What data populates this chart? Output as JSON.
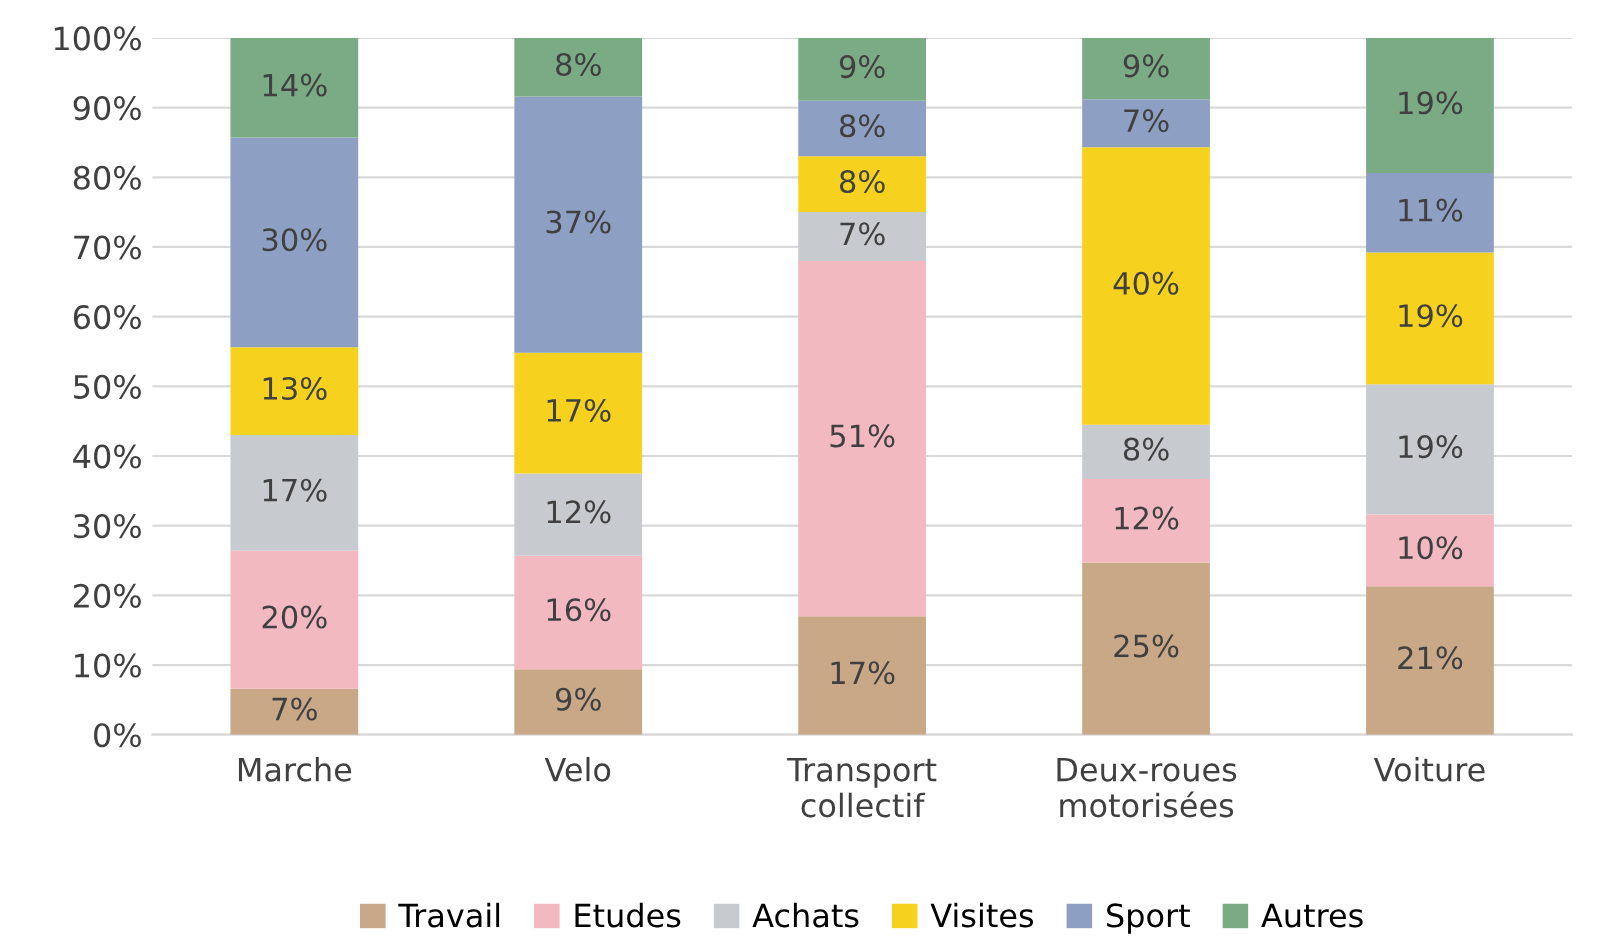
{
  "chart_data": {
    "type": "bar",
    "stacked": true,
    "categories": [
      "Marche",
      "Velo",
      "Transport\ncollectif",
      "Deux-roues\nmotorisées",
      "Voiture"
    ],
    "series": [
      {
        "name": "Travail",
        "color": "#c9a888",
        "values": [
          6.6,
          9.4,
          17,
          24.7,
          21.3
        ],
        "value_labels": [
          "7%",
          "9%",
          "17%",
          "25%",
          "21%"
        ]
      },
      {
        "name": "Etudes",
        "color": "#f2b9c0",
        "values": [
          19.8,
          16.3,
          51,
          12.0,
          10.3
        ],
        "value_labels": [
          "20%",
          "16%",
          "51%",
          "12%",
          "10%"
        ]
      },
      {
        "name": "Achats",
        "color": "#c7cbcf",
        "values": [
          16.6,
          11.8,
          7,
          7.8,
          18.7
        ],
        "value_labels": [
          "17%",
          "12%",
          "7%",
          "8%",
          "19%"
        ]
      },
      {
        "name": "Visites",
        "color": "#f6d21f",
        "values": [
          12.6,
          17.3,
          8,
          39.8,
          18.9
        ],
        "value_labels": [
          "13%",
          "17%",
          "8%",
          "40%",
          "19%"
        ]
      },
      {
        "name": "Sport",
        "color": "#8e9fc4",
        "values": [
          30.1,
          36.8,
          8,
          6.9,
          11.4
        ],
        "value_labels": [
          "30%",
          "37%",
          "8%",
          "7%",
          "11%"
        ]
      },
      {
        "name": "Autres",
        "color": "#7aab84",
        "values": [
          14.3,
          8.4,
          9,
          8.8,
          19.4
        ],
        "value_labels": [
          "14%",
          "8%",
          "9%",
          "9%",
          "19%"
        ]
      }
    ],
    "ylim": [
      0,
      100
    ],
    "yticks": [
      {
        "value": 0,
        "label": "0%"
      },
      {
        "value": 10,
        "label": "10%"
      },
      {
        "value": 20,
        "label": "20%"
      },
      {
        "value": 30,
        "label": "30%"
      },
      {
        "value": 40,
        "label": "40%"
      },
      {
        "value": 50,
        "label": "50%"
      },
      {
        "value": 60,
        "label": "60%"
      },
      {
        "value": 70,
        "label": "70%"
      },
      {
        "value": 80,
        "label": "80%"
      },
      {
        "value": 90,
        "label": "90%"
      },
      {
        "value": 100,
        "label": "100%"
      }
    ],
    "grid": "y",
    "legend": "bottom"
  }
}
